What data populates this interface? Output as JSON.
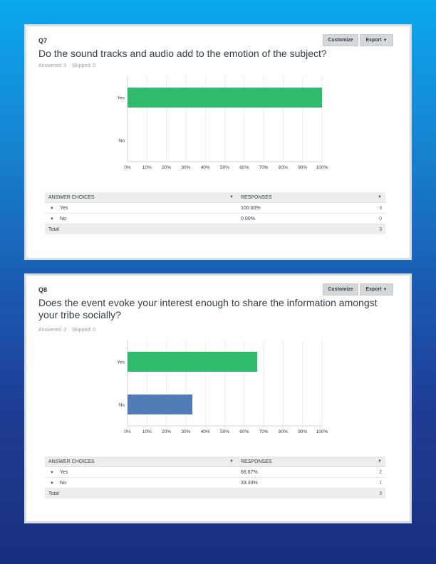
{
  "colors": {
    "yes_bar": "#2fba6e",
    "no_bar": "#4f7bb6",
    "grid": "#e4e6e8",
    "axis": "#c5c9cc"
  },
  "buttons": {
    "customize": "Customize",
    "export": "Export"
  },
  "table_headers": {
    "choices": "ANSWER CHOICES",
    "responses": "RESPONSES",
    "total": "Total"
  },
  "q7": {
    "number": "Q7",
    "title": "Do the sound tracks and audio add to the emotion of the subject?",
    "answered": "Answered: 3",
    "skipped": "Skipped: 0",
    "rows": [
      {
        "label": "Yes",
        "percent": "100.00%",
        "count": "3"
      },
      {
        "label": "No",
        "percent": "0.00%",
        "count": "0"
      }
    ],
    "total": "3"
  },
  "q8": {
    "number": "Q8",
    "title": "Does the event evoke your interest enough to share the information amongst your tribe socially?",
    "answered": "Answered: 3",
    "skipped": "Skipped: 0",
    "rows": [
      {
        "label": "Yes",
        "percent": "66.67%",
        "count": "2"
      },
      {
        "label": "No",
        "percent": "33.33%",
        "count": "1"
      }
    ],
    "total": "3"
  },
  "chart_data": [
    {
      "type": "bar",
      "orientation": "horizontal",
      "categories": [
        "Yes",
        "No"
      ],
      "values": [
        100,
        0
      ],
      "xlim": [
        0,
        100
      ],
      "xticks": [
        "0%",
        "10%",
        "20%",
        "30%",
        "40%",
        "50%",
        "60%",
        "70%",
        "80%",
        "90%",
        "100%"
      ],
      "grid": true,
      "colors": [
        "#2fba6e",
        "#4f7bb6"
      ]
    },
    {
      "type": "bar",
      "orientation": "horizontal",
      "categories": [
        "Yes",
        "No"
      ],
      "values": [
        66.67,
        33.33
      ],
      "xlim": [
        0,
        100
      ],
      "xticks": [
        "0%",
        "10%",
        "20%",
        "30%",
        "40%",
        "50%",
        "60%",
        "70%",
        "80%",
        "90%",
        "100%"
      ],
      "grid": true,
      "colors": [
        "#2fba6e",
        "#4f7bb6"
      ]
    }
  ]
}
